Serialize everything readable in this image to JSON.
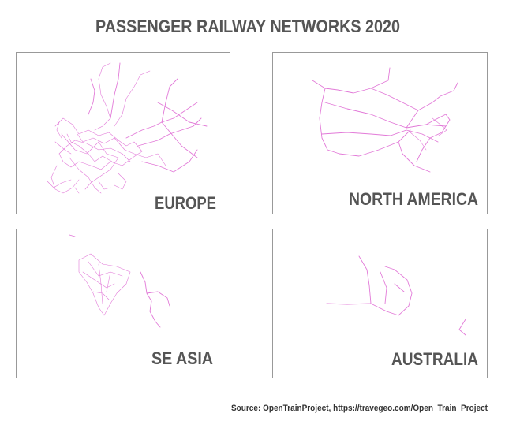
{
  "title": "PASSENGER RAILWAY NETWORKS 2020",
  "panels": [
    {
      "label": "EUROPE"
    },
    {
      "label": "NORTH AMERICA"
    },
    {
      "label": "SE ASIA"
    },
    {
      "label": "AUSTRALIA"
    }
  ],
  "source": "Source: OpenTrainProject, https://travegeo.com/Open_Train_Project"
}
